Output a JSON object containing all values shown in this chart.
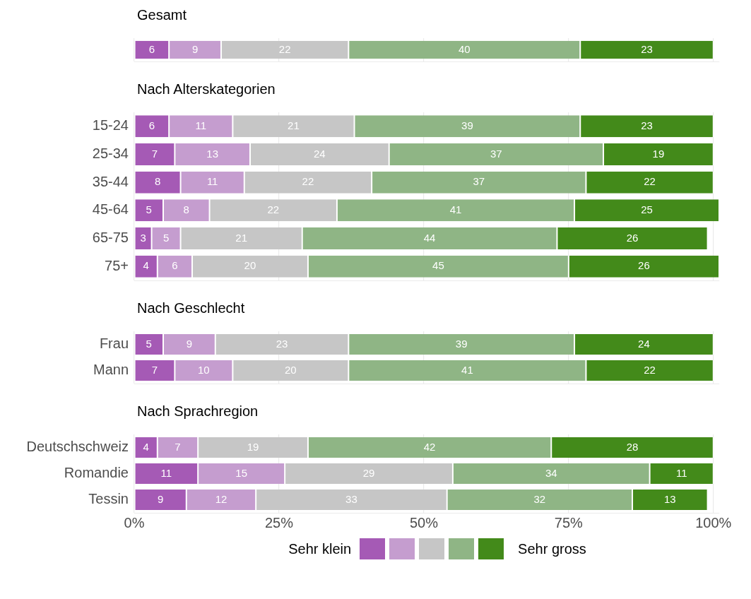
{
  "chart_data": [
    {
      "type": "bar",
      "title": "Gesamt",
      "orientation": "horizontal",
      "stacked": true,
      "categories": [
        null
      ],
      "xlim": [
        0,
        101
      ],
      "xticks": [
        0,
        25,
        50,
        75,
        100
      ],
      "grid": "x",
      "tick_labels": "y",
      "data_labels": true,
      "series": [
        {
          "color": "#a55ab5",
          "values": [
            6
          ]
        },
        {
          "color": "#c59dcf",
          "values": [
            9
          ]
        },
        {
          "color": "#c6c6c6",
          "values": [
            22
          ]
        },
        {
          "color": "#8fb585",
          "values": [
            40
          ]
        },
        {
          "color": "#438a1a",
          "values": [
            23
          ]
        }
      ]
    },
    {
      "type": "bar",
      "title": "Nach Alterskategorien",
      "orientation": "horizontal",
      "stacked": true,
      "categories": [
        "15-24",
        "25-34",
        "35-44",
        "45-64",
        "65-75",
        "75+"
      ],
      "xlim": [
        0,
        101
      ],
      "xticks": [
        0,
        25,
        50,
        75,
        100
      ],
      "grid": "x",
      "tick_labels": "y",
      "data_labels": true,
      "series": [
        {
          "color": "#a55ab5",
          "values": [
            6,
            7,
            8,
            5,
            3,
            4
          ]
        },
        {
          "color": "#c59dcf",
          "values": [
            11,
            13,
            11,
            8,
            5,
            6
          ]
        },
        {
          "color": "#c6c6c6",
          "values": [
            21,
            24,
            22,
            22,
            21,
            20
          ]
        },
        {
          "color": "#8fb585",
          "values": [
            39,
            37,
            37,
            41,
            44,
            45
          ]
        },
        {
          "color": "#438a1a",
          "values": [
            23,
            19,
            22,
            25,
            26,
            26
          ]
        }
      ]
    },
    {
      "type": "bar",
      "title": "Nach Geschlecht",
      "orientation": "horizontal",
      "stacked": true,
      "categories": [
        "Frau",
        "Mann"
      ],
      "xlim": [
        0,
        101
      ],
      "xticks": [
        0,
        25,
        50,
        75,
        100
      ],
      "grid": "x",
      "tick_labels": "y",
      "data_labels": true,
      "series": [
        {
          "color": "#a55ab5",
          "values": [
            5,
            7
          ]
        },
        {
          "color": "#c59dcf",
          "values": [
            9,
            10
          ]
        },
        {
          "color": "#c6c6c6",
          "values": [
            23,
            20
          ]
        },
        {
          "color": "#8fb585",
          "values": [
            39,
            41
          ]
        },
        {
          "color": "#438a1a",
          "values": [
            24,
            22
          ]
        }
      ]
    },
    {
      "type": "bar",
      "title": "Nach Sprachregion",
      "orientation": "horizontal",
      "stacked": true,
      "categories": [
        "Deutschschweiz",
        "Romandie",
        "Tessin"
      ],
      "xlim": [
        0,
        101
      ],
      "xticks": [
        {
          "value": 0,
          "label": "0%"
        },
        {
          "value": 25,
          "label": "25%"
        },
        {
          "value": 50,
          "label": "50%"
        },
        {
          "value": 75,
          "label": "75%"
        },
        {
          "value": 100,
          "label": "100%"
        }
      ],
      "grid": "x",
      "data_labels": true,
      "annotations": [
        "Sehr klein",
        "Sehr gross"
      ],
      "series": [
        {
          "color": "#a55ab5",
          "values": [
            4,
            11,
            9
          ]
        },
        {
          "color": "#c59dcf",
          "values": [
            7,
            15,
            12
          ]
        },
        {
          "color": "#c6c6c6",
          "values": [
            19,
            29,
            33
          ]
        },
        {
          "color": "#8fb585",
          "values": [
            42,
            34,
            32
          ]
        },
        {
          "color": "#438a1a",
          "values": [
            28,
            11,
            13
          ]
        }
      ]
    }
  ]
}
